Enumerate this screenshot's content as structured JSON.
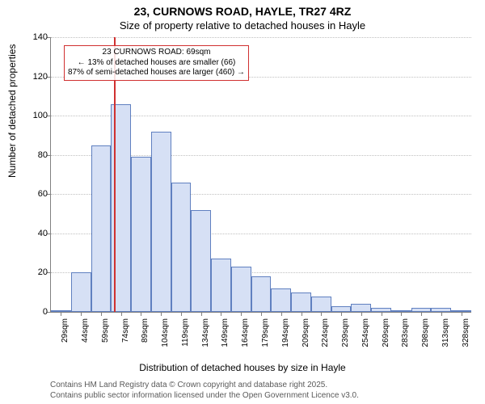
{
  "title": "23, CURNOWS ROAD, HAYLE, TR27 4RZ",
  "subtitle": "Size of property relative to detached houses in Hayle",
  "ylabel": "Number of detached properties",
  "xlabel": "Distribution of detached houses by size in Hayle",
  "chart": {
    "type": "histogram",
    "ylim": [
      0,
      140
    ],
    "ytick_step": 20,
    "yticks": [
      0,
      20,
      40,
      60,
      80,
      100,
      120,
      140
    ],
    "bar_fill": "#d6e0f5",
    "bar_stroke": "#6080c0",
    "background_color": "#ffffff",
    "grid_color": "#c0c0c0",
    "axis_color": "#808080",
    "categories": [
      "29sqm",
      "44sqm",
      "59sqm",
      "74sqm",
      "89sqm",
      "104sqm",
      "119sqm",
      "134sqm",
      "149sqm",
      "164sqm",
      "179sqm",
      "194sqm",
      "209sqm",
      "224sqm",
      "239sqm",
      "254sqm",
      "269sqm",
      "283sqm",
      "298sqm",
      "313sqm",
      "328sqm"
    ],
    "values": [
      1,
      20,
      85,
      106,
      79,
      92,
      66,
      52,
      27,
      23,
      18,
      12,
      10,
      8,
      3,
      4,
      2,
      0,
      2,
      2,
      0
    ],
    "bar_width": 1.0,
    "label_fontsize": 12,
    "tick_fontsize": 11
  },
  "marker": {
    "value_sqm": 69,
    "line_color": "#d03030",
    "annotation_border": "#d03030",
    "lines": {
      "l1": "23 CURNOWS ROAD: 69sqm",
      "l2": "← 13% of detached houses are smaller (66)",
      "l3": "87% of semi-detached houses are larger (460) →"
    }
  },
  "footer": {
    "l1": "Contains HM Land Registry data © Crown copyright and database right 2025.",
    "l2": "Contains public sector information licensed under the Open Government Licence v3.0."
  }
}
